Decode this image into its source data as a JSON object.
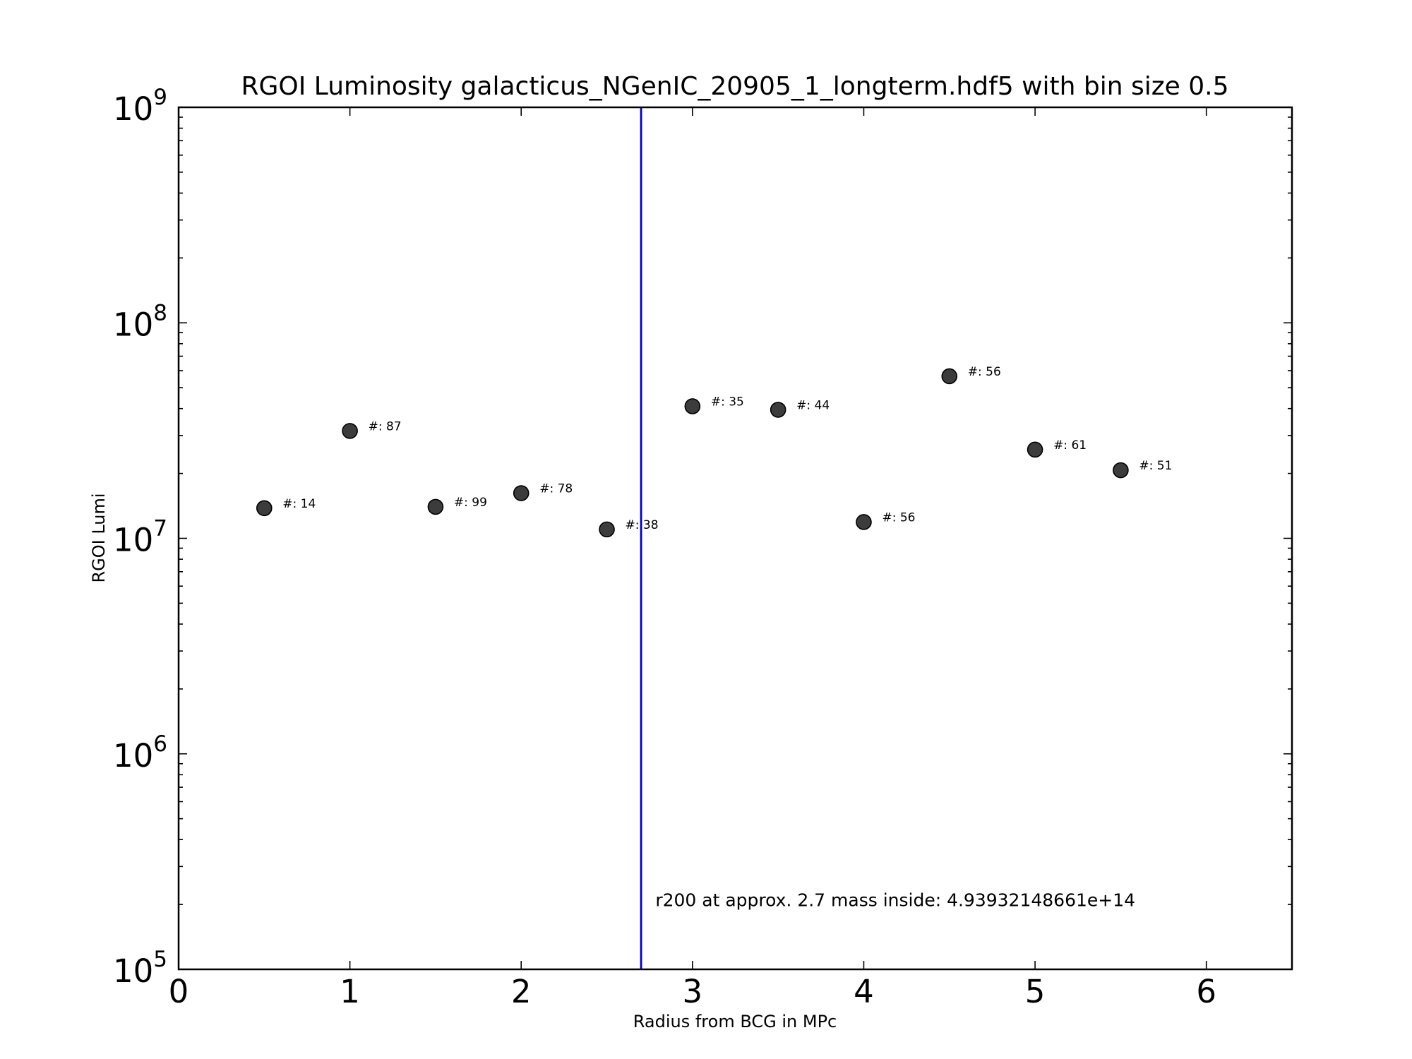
{
  "chart_data": {
    "type": "scatter",
    "title": "RGOI Luminosity galacticus_NGenIC_20905_1_longterm.hdf5 with bin size 0.5",
    "xlabel": "Radius from BCG in MPc",
    "ylabel": "RGOI Lumi",
    "xlim": [
      0,
      6.5
    ],
    "ylim": [
      100000,
      1000000000
    ],
    "yscale": "log",
    "x_ticks": [
      "0",
      "1",
      "2",
      "3",
      "4",
      "5",
      "6"
    ],
    "y_ticks": [
      {
        "base": "10",
        "exp": "5"
      },
      {
        "base": "10",
        "exp": "6"
      },
      {
        "base": "10",
        "exp": "7"
      },
      {
        "base": "10",
        "exp": "8"
      },
      {
        "base": "10",
        "exp": "9"
      }
    ],
    "grid": false,
    "marker_color": "#3c3c3c",
    "line_color": "#0000cc",
    "points": [
      {
        "x": 0.5,
        "y": 13800000,
        "label": "#: 14"
      },
      {
        "x": 1.0,
        "y": 31500000,
        "label": "#: 87"
      },
      {
        "x": 1.5,
        "y": 14000000,
        "label": "#: 99"
      },
      {
        "x": 2.0,
        "y": 16200000,
        "label": "#: 78"
      },
      {
        "x": 2.5,
        "y": 11000000,
        "label": "#: 38"
      },
      {
        "x": 3.0,
        "y": 41000000,
        "label": "#: 35"
      },
      {
        "x": 3.5,
        "y": 39500000,
        "label": "#: 44"
      },
      {
        "x": 4.0,
        "y": 11900000,
        "label": "#: 56"
      },
      {
        "x": 4.5,
        "y": 56500000,
        "label": "#: 56"
      },
      {
        "x": 5.0,
        "y": 25800000,
        "label": "#: 61"
      },
      {
        "x": 5.5,
        "y": 20700000,
        "label": "#: 51"
      }
    ],
    "vline": {
      "x": 2.7
    },
    "annotation": {
      "text": "r200 at approx. 2.7 mass inside: 4.93932148661e+14",
      "x": 2.8,
      "y": 210000
    }
  }
}
